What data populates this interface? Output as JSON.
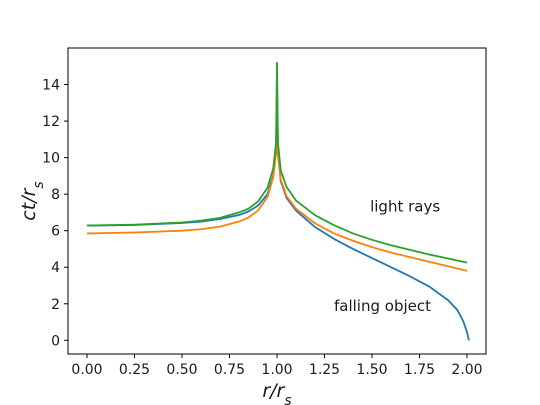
{
  "chart_data": {
    "type": "line",
    "xlabel": "r/r_s",
    "ylabel": "ct/r_s",
    "xlim": [
      -0.1,
      2.1
    ],
    "ylim": [
      -0.75,
      16.0
    ],
    "xticks": [
      "0.00",
      "0.25",
      "0.50",
      "0.75",
      "1.00",
      "1.25",
      "1.50",
      "1.75",
      "2.00"
    ],
    "yticks": [
      "0",
      "2",
      "4",
      "6",
      "8",
      "10",
      "12",
      "14"
    ],
    "grid": false,
    "series": [
      {
        "color": "#1f77b4",
        "x": [
          0.0,
          0.25,
          0.5,
          0.6,
          0.7,
          0.8,
          0.85,
          0.9,
          0.95,
          0.98,
          0.995,
          1.0,
          1.005,
          1.02,
          1.05,
          1.1,
          1.2,
          1.3,
          1.4,
          1.5,
          1.6,
          1.7,
          1.8,
          1.9,
          1.95,
          1.98,
          2.0,
          2.01
        ],
        "y": [
          6.28,
          6.31,
          6.42,
          6.5,
          6.64,
          6.86,
          7.05,
          7.37,
          8.0,
          9.0,
          10.3,
          13.8,
          10.2,
          8.7,
          7.8,
          7.1,
          6.2,
          5.55,
          5.0,
          4.5,
          4.0,
          3.5,
          2.95,
          2.2,
          1.65,
          1.05,
          0.45,
          0.0
        ]
      },
      {
        "color": "#ff7f0e",
        "x": [
          0.0,
          0.25,
          0.5,
          0.6,
          0.7,
          0.8,
          0.85,
          0.9,
          0.95,
          0.98,
          0.995,
          1.0,
          1.005,
          1.02,
          1.05,
          1.1,
          1.2,
          1.3,
          1.4,
          1.5,
          1.6,
          1.7,
          1.8,
          1.9,
          2.0
        ],
        "y": [
          5.85,
          5.9,
          6.0,
          6.08,
          6.22,
          6.5,
          6.72,
          7.1,
          7.85,
          8.9,
          10.2,
          14.5,
          10.3,
          8.8,
          7.9,
          7.2,
          6.4,
          5.85,
          5.45,
          5.1,
          4.8,
          4.55,
          4.3,
          4.05,
          3.8
        ]
      },
      {
        "color": "#2ca02c",
        "x": [
          0.0,
          0.25,
          0.5,
          0.6,
          0.7,
          0.8,
          0.85,
          0.9,
          0.95,
          0.98,
          0.995,
          1.0,
          1.005,
          1.02,
          1.05,
          1.1,
          1.2,
          1.3,
          1.4,
          1.5,
          1.6,
          1.7,
          1.8,
          1.9,
          2.0
        ],
        "y": [
          6.28,
          6.33,
          6.45,
          6.55,
          6.7,
          7.0,
          7.2,
          7.6,
          8.35,
          9.4,
          10.8,
          15.2,
          10.8,
          9.3,
          8.4,
          7.65,
          6.85,
          6.3,
          5.85,
          5.5,
          5.2,
          4.95,
          4.7,
          4.48,
          4.25
        ]
      }
    ],
    "annotations": [
      {
        "text": "light rays",
        "x": 1.49,
        "y": 7.05
      },
      {
        "text": "falling object",
        "x": 1.3,
        "y": 1.6
      }
    ]
  }
}
